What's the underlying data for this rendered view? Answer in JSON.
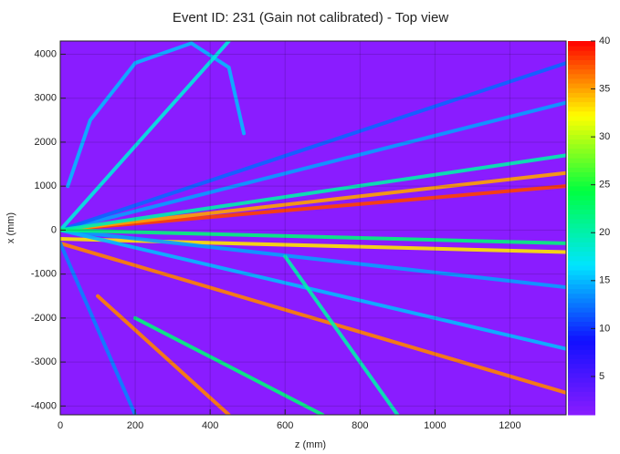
{
  "chart_data": {
    "type": "heatmap",
    "title": "Event ID: 231 (Gain not calibrated) - Top view",
    "x_label": "z (mm)",
    "y_label": "x (mm)",
    "xlim": [
      0,
      1350
    ],
    "xticks": [
      0,
      200,
      400,
      600,
      800,
      1000,
      1200
    ],
    "ylim": [
      -4200,
      4300
    ],
    "yticks": [
      -4000,
      -3000,
      -2000,
      -1000,
      0,
      1000,
      2000,
      3000,
      4000
    ],
    "zlim": [
      1,
      40
    ],
    "zticks": [
      5,
      10,
      15,
      20,
      25,
      30,
      35,
      40
    ],
    "colormap": [
      "#8a1cff",
      "#1010ff",
      "#00e5ff",
      "#00ff40",
      "#ffff00",
      "#ff0000"
    ],
    "grid": true,
    "tracks": [
      {
        "x": [
          0,
          1350
        ],
        "y": [
          0,
          1000
        ],
        "value": 38
      },
      {
        "x": [
          0,
          1350
        ],
        "y": [
          0,
          1300
        ],
        "value": 35
      },
      {
        "x": [
          0,
          1350
        ],
        "y": [
          -200,
          -500
        ],
        "value": 33
      },
      {
        "x": [
          0,
          1350
        ],
        "y": [
          -300,
          -3700
        ],
        "value": 36
      },
      {
        "x": [
          100,
          450
        ],
        "y": [
          -1500,
          -4200
        ],
        "value": 36
      },
      {
        "x": [
          20,
          80,
          200,
          350,
          450,
          490
        ],
        "y": [
          1000,
          2500,
          3800,
          4250,
          3700,
          2200
        ],
        "value": 15
      },
      {
        "x": [
          0,
          1350
        ],
        "y": [
          0,
          2900
        ],
        "value": 14
      },
      {
        "x": [
          0,
          1350
        ],
        "y": [
          0,
          3800
        ],
        "value": 12
      },
      {
        "x": [
          0,
          450
        ],
        "y": [
          0,
          4300
        ],
        "value": 18
      },
      {
        "x": [
          0,
          1350
        ],
        "y": [
          0,
          -1300
        ],
        "value": 14
      },
      {
        "x": [
          0,
          1350
        ],
        "y": [
          0,
          -2700
        ],
        "value": 15
      },
      {
        "x": [
          200,
          700
        ],
        "y": [
          -2000,
          -4200
        ],
        "value": 22
      },
      {
        "x": [
          600,
          900
        ],
        "y": [
          -600,
          -4200
        ],
        "value": 20
      },
      {
        "x": [
          0,
          200
        ],
        "y": [
          -300,
          -4200
        ],
        "value": 13
      },
      {
        "x": [
          0,
          1350
        ],
        "y": [
          0,
          1700
        ],
        "value": 20
      },
      {
        "x": [
          0,
          1350
        ],
        "y": [
          0,
          -300
        ],
        "value": 22
      }
    ]
  }
}
